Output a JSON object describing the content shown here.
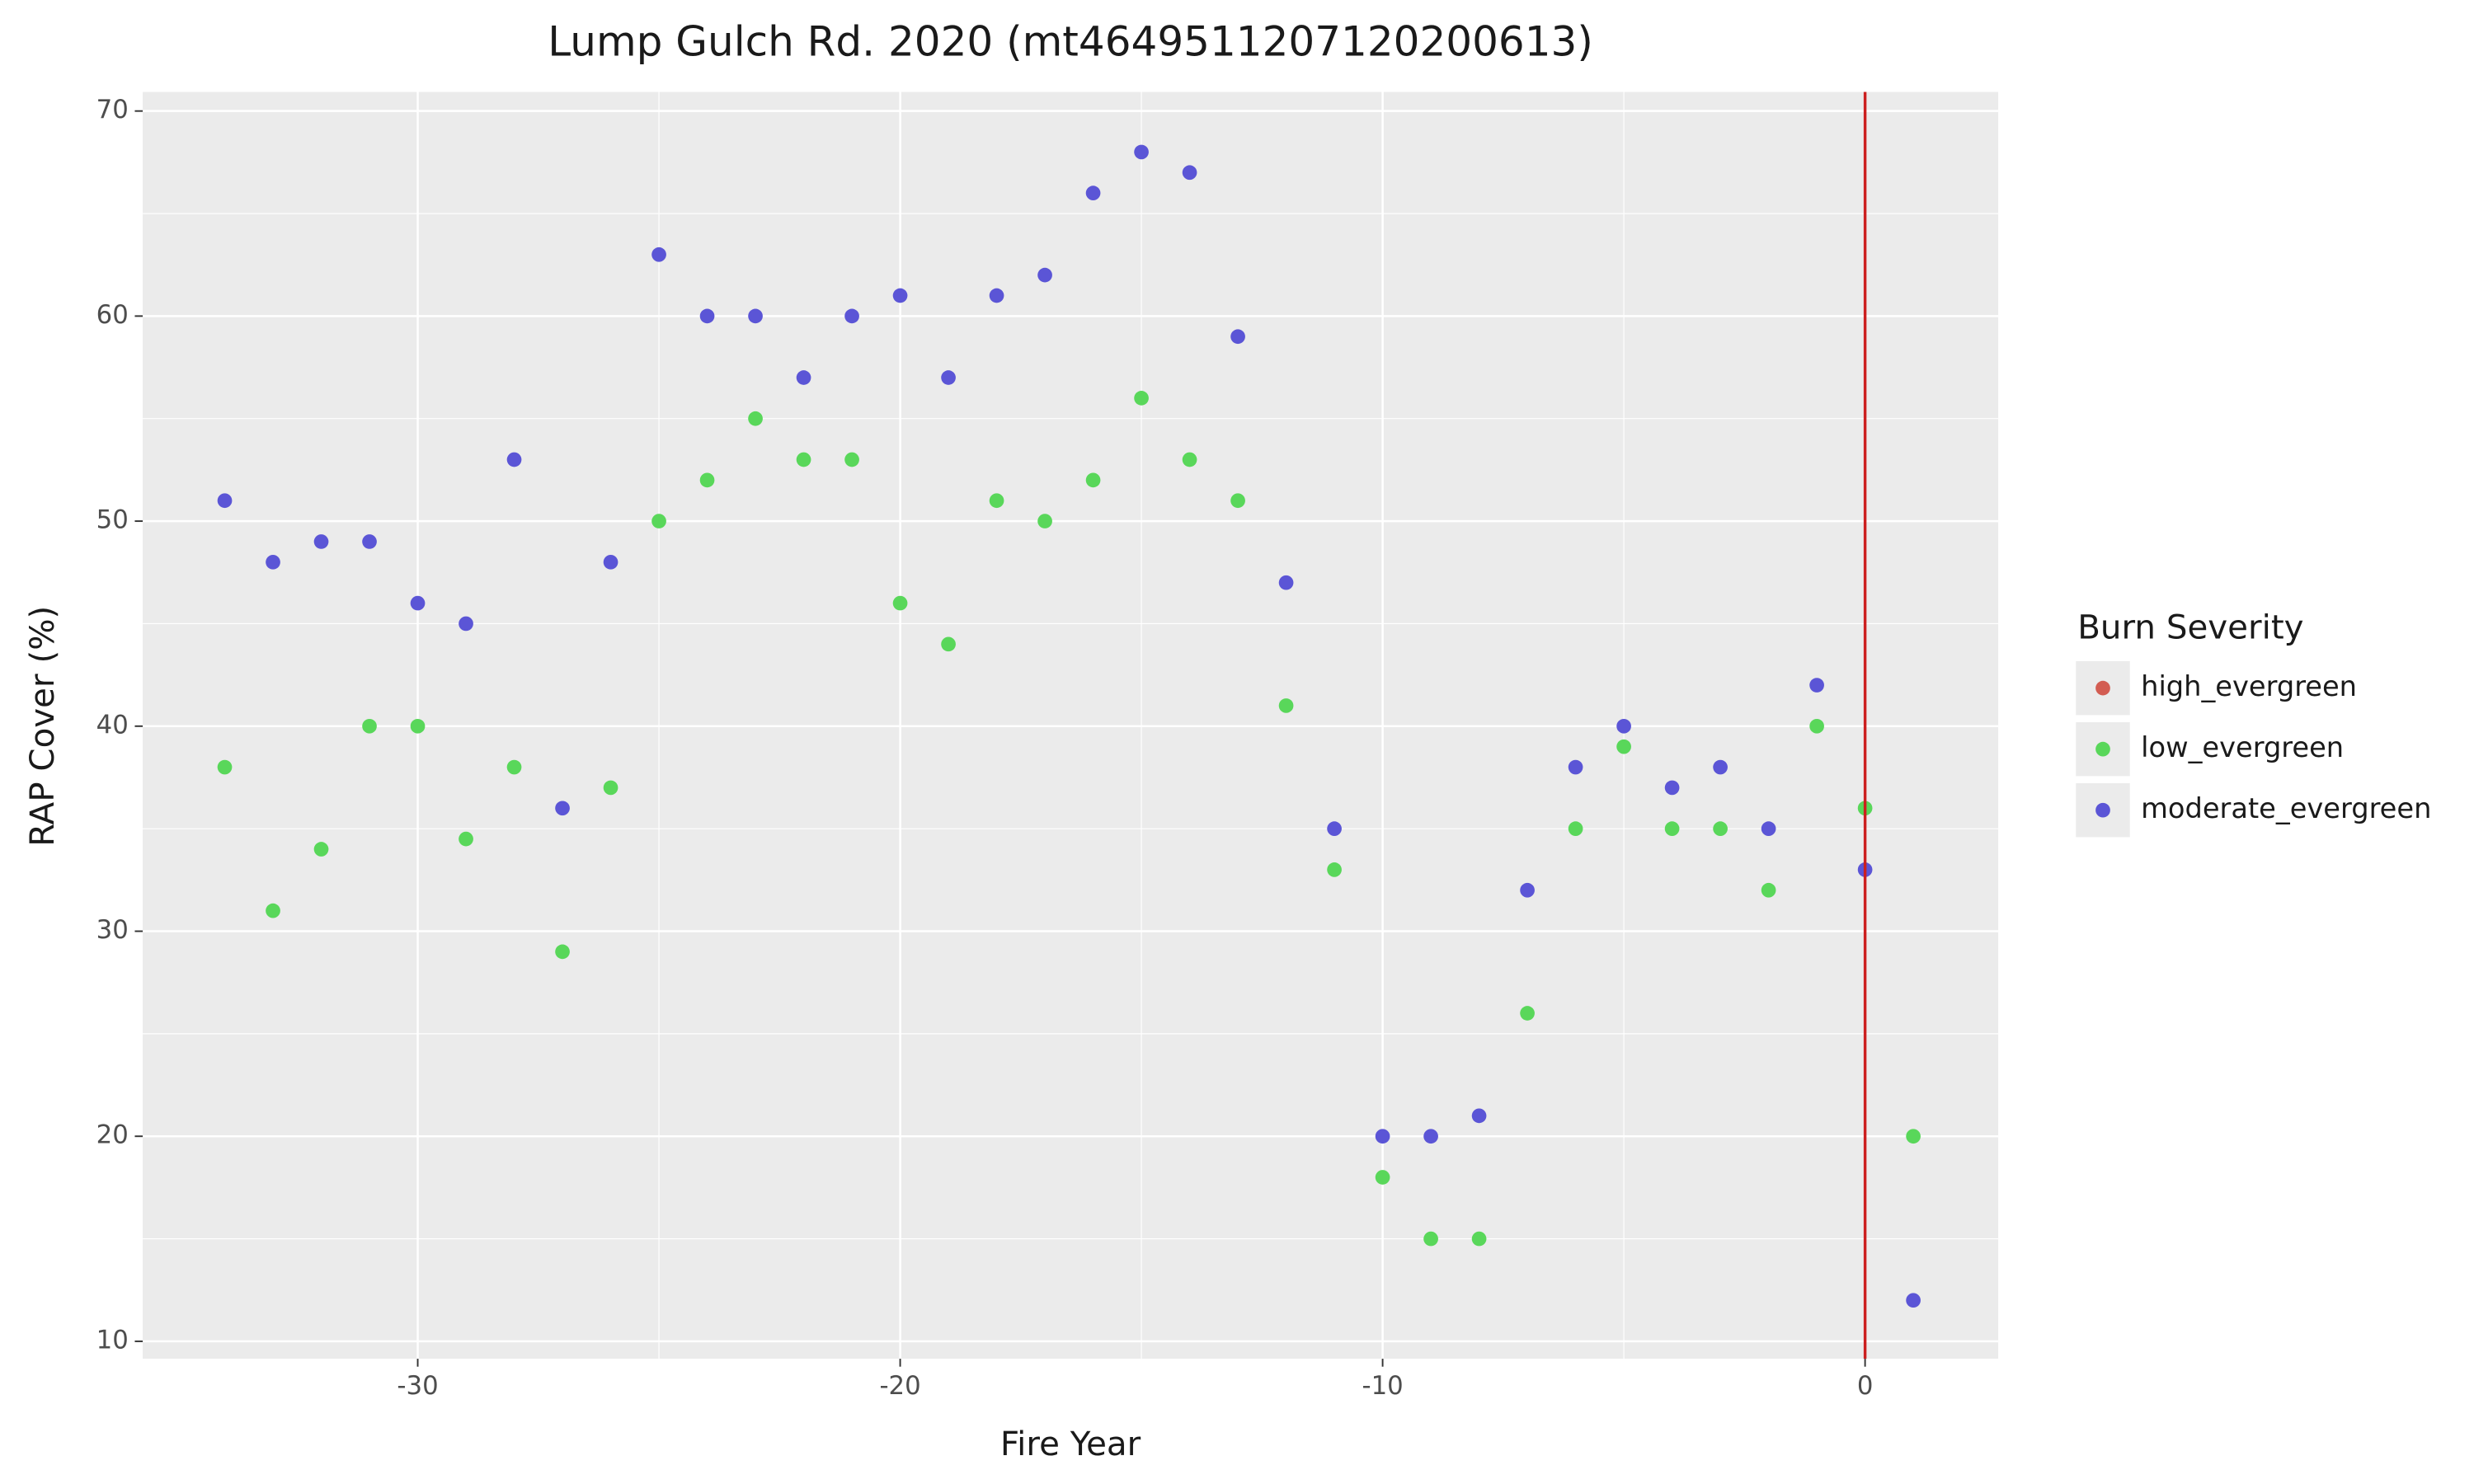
{
  "chart_data": {
    "type": "scatter",
    "title": "Lump Gulch Rd. 2020 (mt4649511207120200613)",
    "x_label": "Fire Year",
    "y_label": "RAP Cover (%)",
    "legend_title": "Burn Severity",
    "legend_position": "right",
    "xlim": [
      -35.7,
      2.76
    ],
    "ylim": [
      9.15,
      70.93
    ],
    "xticks": [
      -30,
      -20,
      -10,
      0
    ],
    "yticks": [
      10,
      20,
      30,
      40,
      50,
      60,
      70
    ],
    "grid": true,
    "vline": {
      "x": 0,
      "color": "#cc1f1f"
    },
    "series": [
      {
        "name": "high_evergreen",
        "color": "#d35d52",
        "x": [],
        "values": []
      },
      {
        "name": "low_evergreen",
        "color": "#59d75a",
        "x": [
          -34,
          -33,
          -32,
          -31,
          -30,
          -29,
          -28,
          -27,
          -26,
          -25,
          -24,
          -23,
          -22,
          -21,
          -20,
          -19,
          -18,
          -17,
          -16,
          -15,
          -14,
          -13,
          -12,
          -11,
          -10,
          -9,
          -8,
          -7,
          -6,
          -5,
          -4,
          -3,
          -2,
          -1,
          0,
          1
        ],
        "values": [
          38,
          31,
          34,
          40,
          40,
          34.5,
          38,
          29,
          37,
          50,
          52,
          55,
          53,
          53,
          46,
          44,
          51,
          50,
          52,
          56,
          53,
          51,
          41,
          33,
          18,
          15,
          15,
          26,
          35,
          39,
          35,
          35,
          32,
          40,
          36,
          20
        ]
      },
      {
        "name": "moderate_evergreen",
        "color": "#5b55d6",
        "x": [
          -34,
          -33,
          -32,
          -31,
          -30,
          -29,
          -28,
          -27,
          -26,
          -25,
          -24,
          -23,
          -22,
          -21,
          -20,
          -19,
          -18,
          -17,
          -16,
          -15,
          -14,
          -13,
          -12,
          -11,
          -10,
          -9,
          -8,
          -7,
          -6,
          -5,
          -4,
          -3,
          -2,
          -1,
          0,
          1
        ],
        "values": [
          51,
          48,
          49,
          49,
          46,
          45,
          53,
          36,
          48,
          63,
          60,
          60,
          57,
          60,
          61,
          57,
          61,
          62,
          66,
          68,
          67,
          59,
          47,
          35,
          20,
          20,
          21,
          32,
          38,
          40,
          37,
          38,
          35,
          42,
          33,
          12
        ]
      }
    ]
  }
}
